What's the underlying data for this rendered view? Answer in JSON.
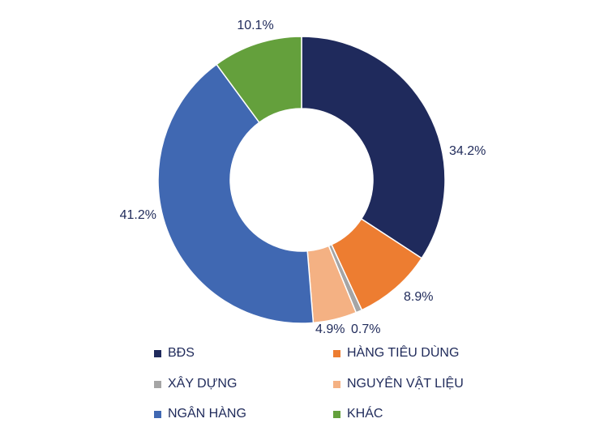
{
  "chart_data": {
    "type": "pie",
    "variant": "donut",
    "categories": [
      "BĐS",
      "HÀNG TIÊU DÙNG",
      "XÂY DỰNG",
      "NGUYÊN VẬT LIỆU",
      "NGÂN HÀNG",
      "KHÁC"
    ],
    "values": [
      34.2,
      8.9,
      0.7,
      4.9,
      41.2,
      10.1
    ],
    "value_labels": [
      "34.2%",
      "8.9%",
      "0.7%",
      "4.9%",
      "41.2%",
      "10.1%"
    ],
    "colors": [
      "#1f2a5c",
      "#ed7d31",
      "#a5a5a5",
      "#f4b183",
      "#4068b2",
      "#64a03c"
    ],
    "legend_position": "bottom"
  }
}
